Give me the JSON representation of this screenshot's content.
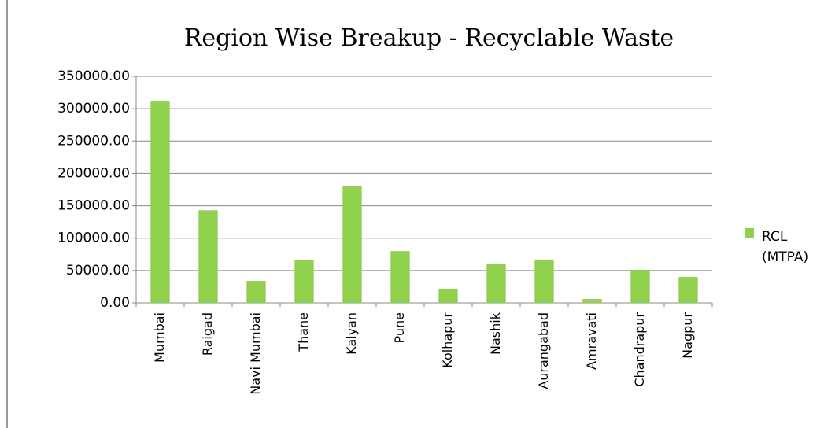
{
  "chart_data": {
    "type": "bar",
    "title": "Region Wise Breakup - Recyclable Waste",
    "categories": [
      "Mumbai",
      "Raigad",
      "Navi Mumbai",
      "Thane",
      "Kalyan",
      "Pune",
      "Kolhapur",
      "Nashik",
      "Aurangabad",
      "Amravati",
      "Chandrapur",
      "Nagpur"
    ],
    "series": [
      {
        "name": "RCL (MTPA)",
        "color": "#92d050",
        "values": [
          311000,
          143000,
          34000,
          66000,
          180000,
          80000,
          22000,
          60000,
          67000,
          6000,
          51000,
          40000
        ]
      }
    ],
    "ylim": [
      0,
      350000
    ],
    "yticks": [
      {
        "value": 0,
        "label": "0.00"
      },
      {
        "value": 50000,
        "label": "50000.00"
      },
      {
        "value": 100000,
        "label": "100000.00"
      },
      {
        "value": 150000,
        "label": "150000.00"
      },
      {
        "value": 200000,
        "label": "200000.00"
      },
      {
        "value": 250000,
        "label": "250000.00"
      },
      {
        "value": 300000,
        "label": "300000.00"
      },
      {
        "value": 350000,
        "label": "350000.00"
      }
    ],
    "grid": true,
    "legend": "right"
  }
}
